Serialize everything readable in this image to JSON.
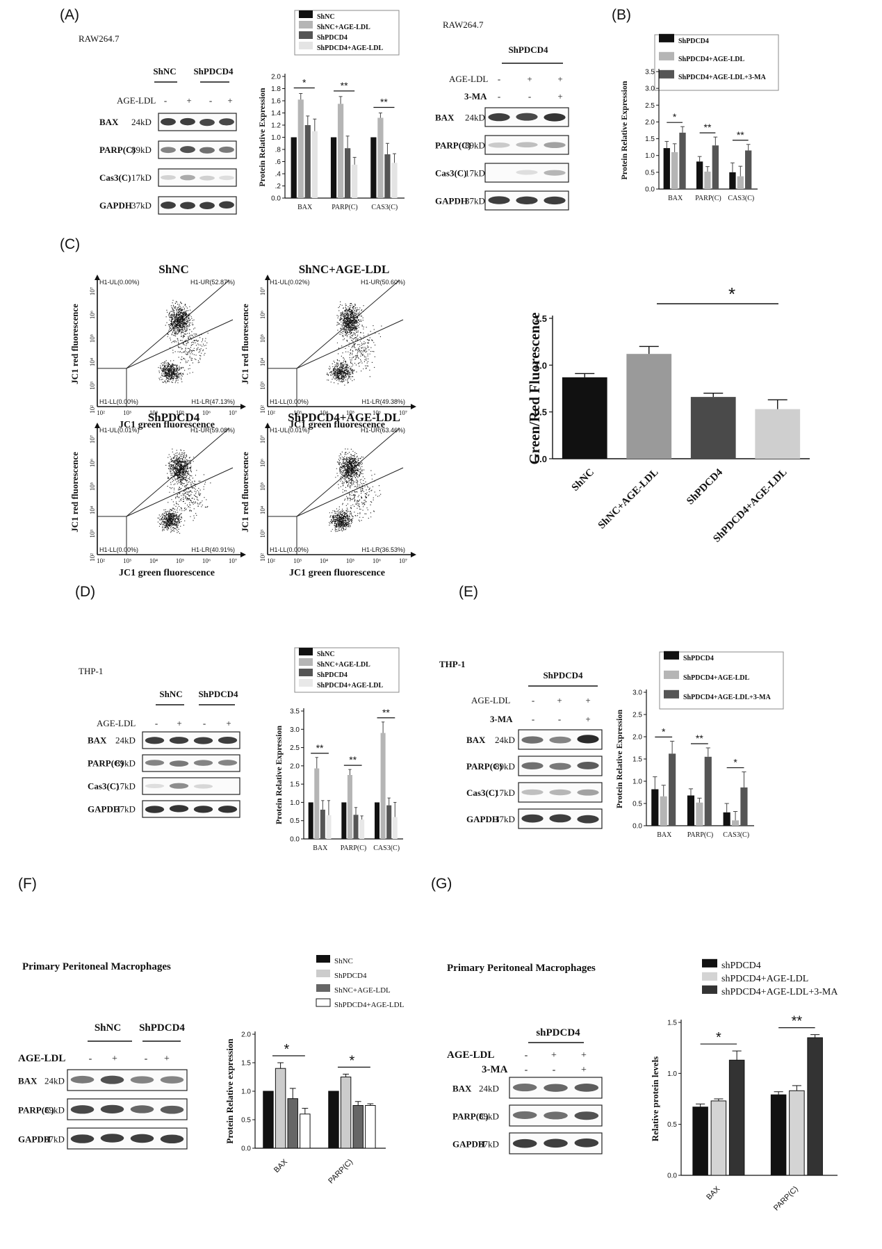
{
  "panels": {
    "A": {
      "letter": "(A)",
      "cell": "RAW264.7",
      "groups": [
        "ShNC",
        "ShPDCD4"
      ],
      "treat_label": "AGE-LDL",
      "treat": [
        "-",
        "+",
        "-",
        "+"
      ],
      "blots": [
        {
          "name": "BAX",
          "kd": "24kD"
        },
        {
          "name": "PARP(C)",
          "kd": "89kD"
        },
        {
          "name": "Cas3(C)",
          "kd": "17kD"
        },
        {
          "name": "GAPDH",
          "kd": "37kD"
        }
      ]
    },
    "A2": {
      "cell": "RAW264.7",
      "group": "ShPDCD4",
      "rows": [
        {
          "label": "AGE-LDL",
          "vals": [
            "-",
            "+",
            "+"
          ]
        },
        {
          "label": "3-MA",
          "vals": [
            "-",
            "-",
            "+"
          ]
        }
      ],
      "blots": [
        {
          "name": "BAX",
          "kd": "24kD"
        },
        {
          "name": "PARP(C)",
          "kd": "89kD"
        },
        {
          "name": "Cas3(C)",
          "kd": "17kD"
        },
        {
          "name": "GAPDH",
          "kd": "37kD"
        }
      ]
    },
    "B": {
      "letter": "(B)"
    },
    "C": {
      "letter": "(C)",
      "flow": [
        {
          "title": "ShNC",
          "ul": "H1-UL(0.00%)",
          "ur": "H1-UR(52.87%)",
          "ll": "H1-LL(0.00%)",
          "lr": "H1-LR(47.13%)"
        },
        {
          "title": "ShNC+AGE-LDL",
          "ul": "H1-UL(0.02%)",
          "ur": "H1-UR(50.60%)",
          "ll": "H1-LL(0.00%)",
          "lr": "H1-LR(49.38%)"
        },
        {
          "title": "ShPDCD4",
          "ul": "H1-UL(0.01%)",
          "ur": "H1-UR(59.08%)",
          "ll": "H1-LL(0.00%)",
          "lr": "H1-LR(40.91%)"
        },
        {
          "title": "ShPDCD4+AGE-LDL",
          "ul": "H1-UL(0.01%)",
          "ur": "H1-UR(63.46%)",
          "ll": "H1-LL(0.00%)",
          "lr": "H1-LR(36.53%)"
        }
      ],
      "flow_xlabel": "JC1 green fluorescence",
      "flow_ylabel": "JC1 red fluorescence",
      "flow_xticks": [
        "10²",
        "10³",
        "10⁴",
        "10⁵",
        "10⁶",
        "10⁷"
      ],
      "flow_yticks": [
        "10²",
        "10³",
        "10⁴",
        "10⁵",
        "10⁶",
        "10⁷"
      ]
    },
    "D": {
      "letter": "(D)",
      "cell": "THP-1",
      "groups": [
        "ShNC",
        "ShPDCD4"
      ],
      "treat_label": "AGE-LDL",
      "treat": [
        "-",
        "+",
        "-",
        "+"
      ],
      "blots": [
        {
          "name": "BAX",
          "kd": "24kD"
        },
        {
          "name": "PARP(C)",
          "kd": "89kD"
        },
        {
          "name": "Cas3(C)",
          "kd": "17kD"
        },
        {
          "name": "GAPDH",
          "kd": "37kD"
        }
      ]
    },
    "E": {
      "letter": "(E)",
      "cell": "THP-1",
      "group": "ShPDCD4",
      "rows": [
        {
          "label": "AGE-LDL",
          "vals": [
            "-",
            "+",
            "+"
          ]
        },
        {
          "label": "3-MA",
          "vals": [
            "-",
            "-",
            "+"
          ]
        }
      ],
      "blots": [
        {
          "name": "BAX",
          "kd": "24kD"
        },
        {
          "name": "PARP(C)",
          "kd": "89kD"
        },
        {
          "name": "Cas3(C)",
          "kd": "17kD"
        },
        {
          "name": "GAPDH",
          "kd": "37kD"
        }
      ]
    },
    "F": {
      "letter": "(F)",
      "title": "Primary Peritoneal Macrophages",
      "groups": [
        "ShNC",
        "ShPDCD4"
      ],
      "treat_label": "AGE-LDL",
      "treat": [
        "-",
        "+",
        "-",
        "+"
      ],
      "blots": [
        {
          "name": "BAX",
          "kd": "24kD"
        },
        {
          "name": "PARP(C)",
          "kd": "89kD"
        },
        {
          "name": "GAPDH",
          "kd": "37kD"
        }
      ]
    },
    "G": {
      "letter": "(G)",
      "title": "Primary Peritoneal Macrophages",
      "group": "shPDCD4",
      "rows": [
        {
          "label": "AGE-LDL",
          "vals": [
            "-",
            "+",
            "+"
          ]
        },
        {
          "label": "3-MA",
          "vals": [
            "-",
            "-",
            "+"
          ]
        }
      ],
      "blots": [
        {
          "name": "BAX",
          "kd": "24kD"
        },
        {
          "name": "PARP(C)",
          "kd": "89kD"
        },
        {
          "name": "GAPDH",
          "kd": "37kD"
        }
      ]
    }
  },
  "chart_data": [
    {
      "id": "A",
      "type": "bar",
      "ylabel": "Protein Relative Expression",
      "categories": [
        "BAX",
        "PARP(C)",
        "CAS3(C)"
      ],
      "yticks": [
        "0.0",
        ".2",
        ".4",
        ".6",
        ".8",
        "1.0",
        "1.2",
        "1.4",
        "1.6",
        "1.8",
        "2.0"
      ],
      "ylim": [
        0,
        2.0
      ],
      "series": [
        {
          "name": "ShNC",
          "values": [
            1.0,
            1.0,
            1.0
          ],
          "errors": [
            0,
            0,
            0
          ],
          "color": "#111111"
        },
        {
          "name": "ShNC+AGE-LDL",
          "values": [
            1.62,
            1.55,
            1.32
          ],
          "errors": [
            0.1,
            0.12,
            0.08
          ],
          "color": "#b5b5b5"
        },
        {
          "name": "ShPDCD4",
          "values": [
            1.2,
            0.82,
            0.72
          ],
          "errors": [
            0.15,
            0.2,
            0.18
          ],
          "color": "#555555"
        },
        {
          "name": "ShPDCD4+AGE-LDL",
          "values": [
            1.1,
            0.55,
            0.58
          ],
          "errors": [
            0.2,
            0.12,
            0.15
          ],
          "color": "#e4e4e4"
        }
      ],
      "sig": [
        {
          "cat": 0,
          "label": "*"
        },
        {
          "cat": 1,
          "label": "**"
        },
        {
          "cat": 2,
          "label": "**"
        }
      ]
    },
    {
      "id": "B",
      "type": "bar",
      "ylabel": "Protein Relative Expression",
      "categories": [
        "BAX",
        "PARP(C)",
        "CAS3(C)"
      ],
      "yticks": [
        "0.0",
        "0.5",
        "1.0",
        "1.5",
        "2.0",
        "2.5",
        "3.0",
        "3.5"
      ],
      "ylim": [
        0,
        3.5
      ],
      "series": [
        {
          "name": "ShPDCD4",
          "values": [
            1.22,
            0.82,
            0.5
          ],
          "errors": [
            0.2,
            0.15,
            0.28
          ],
          "color": "#111111"
        },
        {
          "name": "ShPDCD4+AGE-LDL",
          "values": [
            1.1,
            0.52,
            0.38
          ],
          "errors": [
            0.25,
            0.15,
            0.3
          ],
          "color": "#b5b5b5"
        },
        {
          "name": "ShPDCD4+AGE-LDL+3-MA",
          "values": [
            1.68,
            1.3,
            1.15
          ],
          "errors": [
            0.18,
            0.25,
            0.18
          ],
          "color": "#555555"
        }
      ],
      "sig": [
        {
          "cat": 0,
          "label": "*"
        },
        {
          "cat": 1,
          "label": "**"
        },
        {
          "cat": 2,
          "label": "**"
        }
      ]
    },
    {
      "id": "C",
      "type": "bar",
      "ylabel": "Green/Red Fluorescence",
      "categories": [
        "ShNC",
        "ShNC+AGE-LDL",
        "ShPDCD4",
        "ShPDCD4+AGE-LDL"
      ],
      "yticks": [
        "0.0",
        "0.5",
        "1.0",
        "1.5"
      ],
      "ylim": [
        0,
        1.5
      ],
      "values": [
        0.87,
        1.12,
        0.66,
        0.53
      ],
      "errors": [
        0.04,
        0.08,
        0.04,
        0.1
      ],
      "colors": [
        "#111111",
        "#9a9a9a",
        "#4a4a4a",
        "#cfcfcf"
      ],
      "sig_label": "*"
    },
    {
      "id": "D",
      "type": "bar",
      "ylabel": "Protein Relative Expression",
      "categories": [
        "BAX",
        "PARP(C)",
        "CAS3(C)"
      ],
      "yticks": [
        "0.0",
        "0.5",
        "1.0",
        "1.5",
        "2.0",
        "2.5",
        "3.0",
        "3.5"
      ],
      "ylim": [
        0,
        3.5
      ],
      "series": [
        {
          "name": "ShNC",
          "values": [
            1.0,
            1.0,
            1.0
          ],
          "errors": [
            0,
            0,
            0
          ],
          "color": "#111111"
        },
        {
          "name": "ShNC+AGE-LDL",
          "values": [
            1.93,
            1.75,
            2.9
          ],
          "errors": [
            0.3,
            0.15,
            0.3
          ],
          "color": "#b5b5b5"
        },
        {
          "name": "ShPDCD4",
          "values": [
            0.8,
            0.66,
            0.92
          ],
          "errors": [
            0.25,
            0.2,
            0.2
          ],
          "color": "#555555"
        },
        {
          "name": "ShPDCD4+AGE-LDL",
          "values": [
            0.65,
            0.53,
            0.6
          ],
          "errors": [
            0.4,
            0.1,
            0.4
          ],
          "color": "#e8e8e8"
        }
      ],
      "sig": [
        {
          "cat": 0,
          "label": "**"
        },
        {
          "cat": 1,
          "label": "**"
        },
        {
          "cat": 2,
          "label": "**"
        }
      ]
    },
    {
      "id": "E",
      "type": "bar",
      "ylabel": "Protein Relative Expression",
      "categories": [
        "BAX",
        "PARP(C)",
        "CAS3(C)"
      ],
      "yticks": [
        "0.0",
        "0.5",
        "1.0",
        "1.5",
        "2.0",
        "2.5",
        "3.0"
      ],
      "ylim": [
        0,
        3.0
      ],
      "series": [
        {
          "name": "ShPDCD4",
          "values": [
            0.82,
            0.68,
            0.3
          ],
          "errors": [
            0.28,
            0.15,
            0.2
          ],
          "color": "#111111"
        },
        {
          "name": "ShPDCD4+AGE-LDL",
          "values": [
            0.66,
            0.52,
            0.12
          ],
          "errors": [
            0.25,
            0.1,
            0.2
          ],
          "color": "#b5b5b5"
        },
        {
          "name": "ShPDCD4+AGE-LDL+3-MA",
          "values": [
            1.62,
            1.55,
            0.86
          ],
          "errors": [
            0.28,
            0.2,
            0.35
          ],
          "color": "#555555"
        }
      ],
      "sig": [
        {
          "cat": 0,
          "label": "*"
        },
        {
          "cat": 1,
          "label": "**"
        },
        {
          "cat": 2,
          "label": "*"
        }
      ]
    },
    {
      "id": "F",
      "type": "bar",
      "ylabel": "Protein Relative expression",
      "categories": [
        "BAX",
        "PARP(C)"
      ],
      "yticks": [
        "0.0",
        "0.5",
        "1.0",
        "1.5",
        "2.0"
      ],
      "ylim": [
        0,
        2.0
      ],
      "series": [
        {
          "name": "ShNC",
          "values": [
            1.0,
            1.0
          ],
          "errors": [
            0,
            0
          ],
          "color": "#111111"
        },
        {
          "name": "ShPDCD4",
          "values": [
            1.4,
            1.25
          ],
          "errors": [
            0.1,
            0.05
          ],
          "color": "#cccccc"
        },
        {
          "name": "ShNC+AGE-LDL",
          "values": [
            0.87,
            0.75
          ],
          "errors": [
            0.18,
            0.07
          ],
          "color": "#666666"
        },
        {
          "name": "ShPDCD4+AGE-LDL",
          "values": [
            0.6,
            0.75
          ],
          "errors": [
            0.1,
            0.03
          ],
          "color": "#ffffff"
        }
      ],
      "sig": [
        {
          "cat": 0,
          "label": "*"
        },
        {
          "cat": 1,
          "label": "*"
        }
      ]
    },
    {
      "id": "G",
      "type": "bar",
      "ylabel": "Relative protein levels",
      "categories": [
        "BAX",
        "PARP(C)"
      ],
      "yticks": [
        "0.0",
        "0.5",
        "1.0",
        "1.5"
      ],
      "ylim": [
        0,
        1.5
      ],
      "series": [
        {
          "name": "shPDCD4",
          "values": [
            0.67,
            0.79
          ],
          "errors": [
            0.03,
            0.03
          ],
          "color": "#111111"
        },
        {
          "name": "shPDCD4+AGE-LDL",
          "values": [
            0.73,
            0.83
          ],
          "errors": [
            0.02,
            0.05
          ],
          "color": "#d4d4d4"
        },
        {
          "name": "shPDCD4+AGE-LDL+3-MA",
          "values": [
            1.13,
            1.35
          ],
          "errors": [
            0.09,
            0.03
          ],
          "color": "#333333"
        }
      ],
      "sig": [
        {
          "cat": 0,
          "label": "*"
        },
        {
          "cat": 1,
          "label": "**"
        }
      ]
    }
  ]
}
